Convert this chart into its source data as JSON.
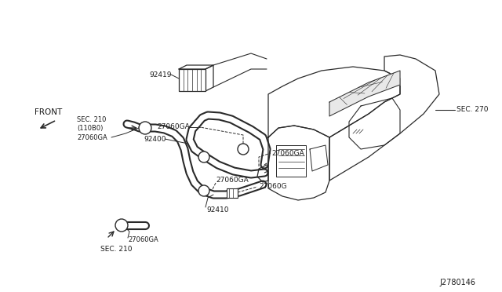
{
  "background_color": "#ffffff",
  "line_color": "#2a2a2a",
  "text_color": "#1a1a1a",
  "diagram_id": "J2780146",
  "labels": {
    "front": "FRONT",
    "sec270": "SEC. 270",
    "sec210_top": "SEC. 210\n(110B0)",
    "sec210_bot": "SEC. 210",
    "92419": "92419",
    "92400": "92400",
    "92410": "92410",
    "27060GA_1": "27060GA",
    "27060GA_2": "27060GA",
    "27060GA_3": "27060GA",
    "27060GA_4": "27060GA",
    "27060GA_5": "27060GA",
    "27060G": "27060G"
  },
  "figsize": [
    6.4,
    3.72
  ],
  "dpi": 100
}
